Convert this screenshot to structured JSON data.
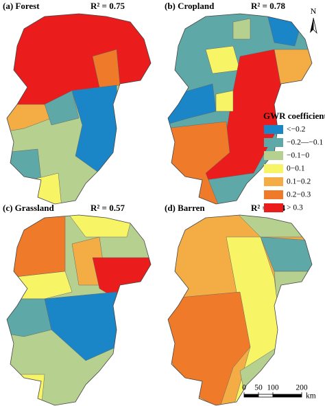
{
  "panels": [
    {
      "label": "(a) Forest",
      "r2": "R² = 0.75"
    },
    {
      "label": "(b) Cropland",
      "r2": "R² = 0.78"
    },
    {
      "label": "(c) Grassland",
      "r2": "R² = 0.57"
    },
    {
      "label": "(d) Barren",
      "r2": "R² = 0.54"
    }
  ],
  "legend": {
    "title": "GWR coefficient",
    "items": [
      {
        "label": "<−0.2",
        "color": "#1a86c8"
      },
      {
        "label": "−0.2—−0.1",
        "color": "#5fa8a8"
      },
      {
        "label": "−0.1−0",
        "color": "#b5d08f"
      },
      {
        "label": "0−0.1",
        "color": "#f7f466"
      },
      {
        "label": "0.1−0.2",
        "color": "#f4ad45"
      },
      {
        "label": "0.2−0.3",
        "color": "#ef7a2a"
      },
      {
        "label": "> 0.3",
        "color": "#ea1c1c"
      }
    ]
  },
  "scale_bar": {
    "ticks": [
      0,
      50,
      100,
      200
    ],
    "unit": "km"
  },
  "north": "N"
}
